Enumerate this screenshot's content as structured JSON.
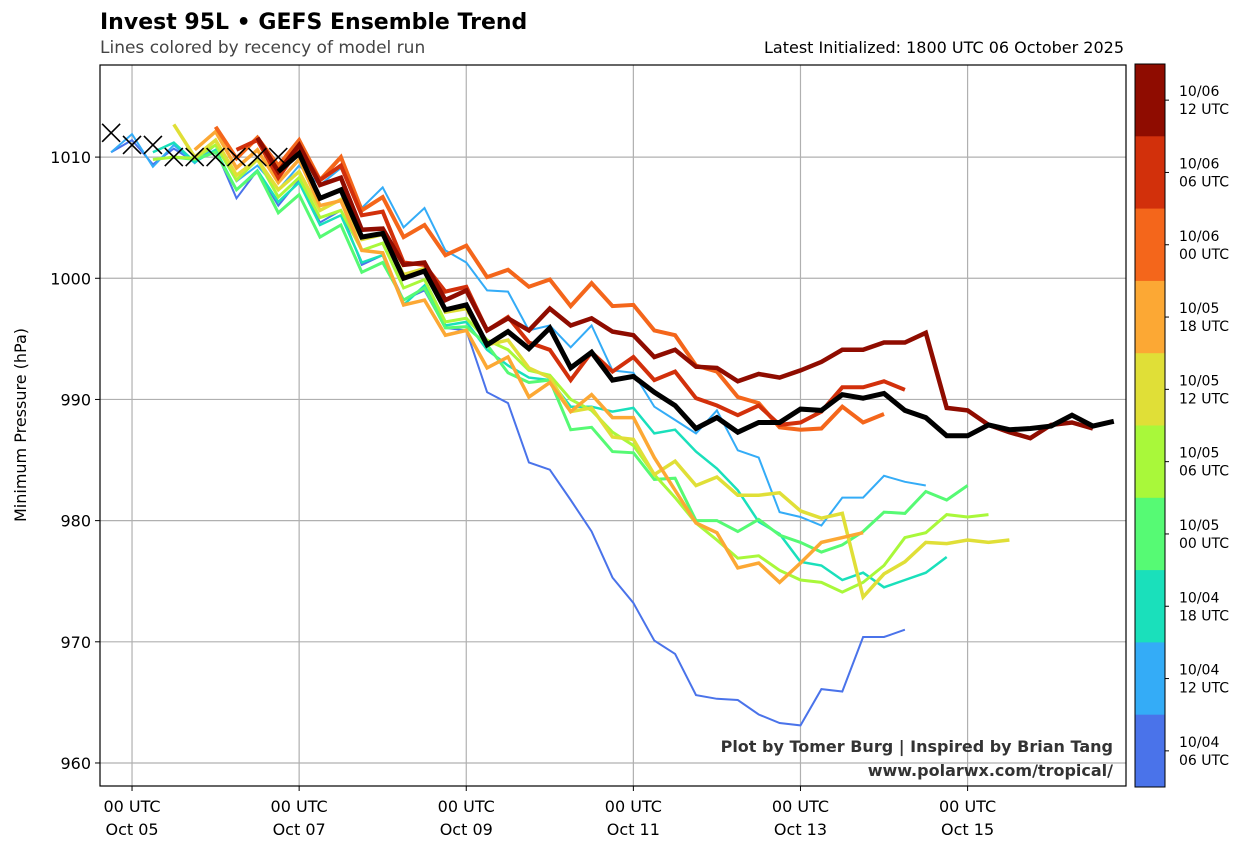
{
  "header": {
    "title": "Invest 95L • GEFS Ensemble Trend",
    "subtitle": "Lines colored by recency of model run",
    "latest_init": "Latest Initialized: 1800 UTC 06 October 2025"
  },
  "credits": {
    "line1": "Plot by Tomer Burg | Inspired by Brian Tang",
    "line2": "www.polarwx.com/tropical/"
  },
  "chart_data": {
    "type": "line",
    "title": "Invest 95L • GEFS Ensemble Trend",
    "ylabel": "Minimum Pressure (hPa)",
    "xlabel": "",
    "xlim": [
      "2025-10-04T14:48Z",
      "2025-10-16T21:30Z"
    ],
    "ylim": [
      958.1,
      1017.6
    ],
    "grid": true,
    "yticks": [
      960,
      970,
      980,
      990,
      1000,
      1010
    ],
    "xticks": [
      {
        "time": "2025-10-05T00:00Z",
        "line1": "00 UTC",
        "line2": "Oct 05"
      },
      {
        "time": "2025-10-07T00:00Z",
        "line1": "00 UTC",
        "line2": "Oct 07"
      },
      {
        "time": "2025-10-09T00:00Z",
        "line1": "00 UTC",
        "line2": "Oct 09"
      },
      {
        "time": "2025-10-11T00:00Z",
        "line1": "00 UTC",
        "line2": "Oct 11"
      },
      {
        "time": "2025-10-13T00:00Z",
        "line1": "00 UTC",
        "line2": "Oct 13"
      },
      {
        "time": "2025-10-15T00:00Z",
        "line1": "00 UTC",
        "line2": "Oct 15"
      }
    ],
    "step_hours": 6,
    "colorbar": [
      {
        "line1": "10/06",
        "line2": "12 UTC",
        "color": "#8f0c00"
      },
      {
        "line1": "10/06",
        "line2": "06 UTC",
        "color": "#d2300b"
      },
      {
        "line1": "10/06",
        "line2": "00 UTC",
        "color": "#f4661b"
      },
      {
        "line1": "10/05",
        "line2": "18 UTC",
        "color": "#fca834"
      },
      {
        "line1": "10/05",
        "line2": "12 UTC",
        "color": "#e0df37"
      },
      {
        "line1": "10/05",
        "line2": "06 UTC",
        "color": "#a9f83a"
      },
      {
        "line1": "10/05",
        "line2": "00 UTC",
        "color": "#56fa74"
      },
      {
        "line1": "10/04",
        "line2": "18 UTC",
        "color": "#1ae0bb"
      },
      {
        "line1": "10/04",
        "line2": "12 UTC",
        "color": "#34acf7"
      },
      {
        "line1": "10/04",
        "line2": "06 UTC",
        "color": "#4a73ea"
      }
    ],
    "observed": {
      "marker": "x",
      "color": "#000000",
      "start": "2025-10-04T18:00Z",
      "values": [
        1012,
        1011,
        1011,
        1010,
        1010,
        1010,
        1010,
        1010,
        1010
      ]
    },
    "series": [
      {
        "run": "10/04 06 UTC",
        "color": "#4a73ea",
        "start": "2025-10-04T18:00Z",
        "values": [
          1010.4,
          1011.4,
          1009.4,
          1010.7,
          1009.6,
          1010.6,
          1006.6,
          1008.9,
          1006.0,
          1008.1,
          1004.6,
          1005.6,
          1001.1,
          1001.9,
          998.2,
          999.0,
          995.9,
          995.7,
          990.6,
          989.7,
          984.8,
          984.2,
          981.7,
          979.1,
          975.3,
          973.2,
          970.1,
          969.0,
          965.6,
          965.3,
          965.2,
          964.0,
          963.3,
          963.1,
          966.1,
          965.9,
          970.4,
          970.4,
          971.0
        ]
      },
      {
        "run": "10/04 12 UTC",
        "color": "#34acf7",
        "start": "2025-10-04T18:00Z",
        "values": [
          1010.4,
          1011.9,
          1009.2,
          1011.0,
          1009.5,
          1011.0,
          1008.0,
          1009.3,
          1007.3,
          1009.3,
          1007.7,
          1009.1,
          1005.8,
          1007.5,
          1004.2,
          1005.8,
          1002.3,
          1001.3,
          999.0,
          998.9,
          995.7,
          996.1,
          994.3,
          996.1,
          992.4,
          992.2,
          989.4,
          988.3,
          987.2,
          989.1,
          985.8,
          985.2,
          980.7,
          980.3,
          979.6,
          981.9,
          981.9,
          983.7,
          983.2,
          982.9
        ]
      },
      {
        "run": "10/04 18 UTC",
        "color": "#1ae0bb",
        "start": "2025-10-05T06:00Z",
        "values": [
          1010.4,
          1011.2,
          1009.6,
          1010.6,
          1007.3,
          1008.9,
          1006.3,
          1007.9,
          1004.4,
          1005.2,
          1001.3,
          1001.9,
          997.8,
          999.4,
          996.1,
          996.4,
          994.1,
          992.8,
          991.8,
          991.6,
          989.4,
          989.4,
          989.0,
          989.3,
          987.2,
          987.5,
          985.7,
          984.3,
          982.5,
          979.9,
          978.9,
          976.6,
          976.3,
          975.1,
          975.7,
          974.5,
          975.1,
          975.7,
          977.0
        ]
      },
      {
        "run": "10/05 00 UTC",
        "color": "#56fa74",
        "start": "2025-10-05T12:00Z",
        "values": [
          1010.0,
          1009.8,
          1010.4,
          1007.3,
          1008.8,
          1005.4,
          1006.9,
          1003.4,
          1004.4,
          1000.5,
          1001.3,
          998.2,
          999.2,
          995.9,
          996.0,
          994.5,
          992.2,
          991.4,
          991.6,
          987.5,
          987.7,
          985.7,
          985.6,
          983.4,
          983.5,
          980.0,
          980.0,
          979.1,
          980.1,
          978.8,
          978.2,
          977.4,
          978.0,
          979.1,
          980.7,
          980.6,
          982.4,
          981.7,
          982.9
        ]
      },
      {
        "run": "10/05 06 UTC",
        "color": "#a9f83a",
        "start": "2025-10-05T06:00Z",
        "values": [
          1009.8,
          1010.0,
          1009.9,
          1011.0,
          1008.1,
          1009.8,
          1006.7,
          1008.3,
          1005.0,
          1005.6,
          1002.3,
          1002.9,
          999.2,
          999.9,
          996.4,
          996.7,
          994.9,
          994.1,
          992.4,
          992.0,
          990.0,
          989.1,
          987.3,
          986.2,
          983.8,
          981.9,
          979.8,
          978.4,
          976.9,
          977.1,
          975.9,
          975.1,
          974.9,
          974.1,
          974.9,
          976.3,
          978.6,
          979.0,
          980.5,
          980.3,
          980.5
        ]
      },
      {
        "run": "10/05 12 UTC",
        "color": "#e0df37",
        "start": "2025-10-05T12:00Z",
        "values": [
          1012.7,
          1010.0,
          1011.4,
          1008.5,
          1009.8,
          1007.3,
          1008.8,
          1005.6,
          1006.5,
          1003.2,
          1003.6,
          1000.3,
          1000.8,
          997.2,
          997.5,
          994.5,
          994.9,
          992.6,
          991.8,
          989.0,
          989.3,
          986.9,
          986.7,
          983.8,
          984.9,
          982.9,
          983.6,
          982.1,
          982.1,
          982.3,
          980.8,
          980.2,
          980.6,
          973.7,
          975.6,
          976.6,
          978.2,
          978.1,
          978.4,
          978.2,
          978.4
        ]
      },
      {
        "run": "10/05 18 UTC",
        "color": "#fca834",
        "start": "2025-10-05T18:00Z",
        "values": [
          1010.6,
          1012.1,
          1009.1,
          1010.6,
          1007.9,
          1009.8,
          1006.0,
          1006.4,
          1002.3,
          1002.1,
          997.8,
          998.2,
          995.3,
          995.7,
          992.6,
          993.5,
          990.2,
          991.4,
          989.0,
          990.4,
          988.5,
          988.5,
          985.2,
          982.5,
          979.8,
          979.0,
          976.1,
          976.5,
          974.9,
          976.5,
          978.2,
          978.6,
          979.0
        ]
      },
      {
        "run": "10/06 00 UTC",
        "color": "#f4661b",
        "start": "2025-10-06T00:00Z",
        "values": [
          1012.5,
          1009.9,
          1011.6,
          1009.3,
          1011.4,
          1008.1,
          1010.0,
          1005.6,
          1006.7,
          1003.4,
          1004.4,
          1001.9,
          1002.7,
          1000.1,
          1000.7,
          999.3,
          999.9,
          997.7,
          999.6,
          997.7,
          997.8,
          995.7,
          995.3,
          992.8,
          992.3,
          990.2,
          989.7,
          987.7,
          987.5,
          987.6,
          989.4,
          988.1,
          988.8
        ]
      },
      {
        "run": "10/06 06 UTC",
        "color": "#d2300b",
        "start": "2025-10-06T06:00Z",
        "values": [
          1010.6,
          1011.4,
          1008.3,
          1010.7,
          1008.1,
          1009.3,
          1005.2,
          1005.5,
          1001.3,
          1001.1,
          998.9,
          999.3,
          995.7,
          996.8,
          994.7,
          994.1,
          991.6,
          993.9,
          992.3,
          993.5,
          991.6,
          992.3,
          990.1,
          989.5,
          988.7,
          989.5,
          987.9,
          988.1,
          989.0,
          991.0,
          991.0,
          991.5,
          990.8
        ]
      },
      {
        "run": "10/06 12 UTC",
        "color": "#8f0c00",
        "start": "2025-10-06T12:00Z",
        "values": [
          1011.6,
          1008.8,
          1011.0,
          1007.7,
          1008.3,
          1004.0,
          1004.1,
          1001.1,
          1001.3,
          998.2,
          999.0,
          995.7,
          996.7,
          995.7,
          997.5,
          996.1,
          996.7,
          995.6,
          995.3,
          993.5,
          994.1,
          992.7,
          992.6,
          991.5,
          992.1,
          991.8,
          992.4,
          993.1,
          994.1,
          994.1,
          994.7,
          994.7,
          995.5,
          989.3,
          989.1,
          987.9,
          987.3,
          986.8,
          987.9,
          988.1,
          987.6
        ]
      },
      {
        "run": "10/06 18 UTC",
        "color": "#000000",
        "start": "2025-10-06T18:00Z",
        "values": [
          1008.8,
          1010.3,
          1006.6,
          1007.3,
          1003.4,
          1003.7,
          1000.0,
          1000.6,
          997.4,
          997.8,
          994.5,
          995.6,
          994.2,
          995.9,
          992.6,
          993.9,
          991.6,
          991.9,
          990.6,
          989.5,
          987.6,
          988.5,
          987.3,
          988.1,
          988.1,
          989.2,
          989.1,
          990.4,
          990.1,
          990.5,
          989.1,
          988.5,
          987.0,
          987.0,
          987.9,
          987.5,
          987.6,
          987.8,
          988.7,
          987.8,
          988.2
        ]
      }
    ]
  }
}
